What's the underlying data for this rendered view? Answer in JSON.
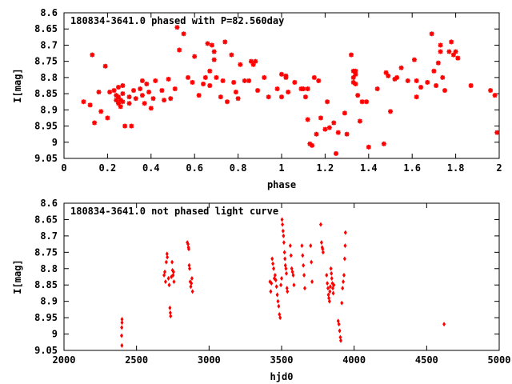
{
  "chart_data": [
    {
      "type": "scatter",
      "title": "180834-3641.0 phased with P=82.560day",
      "xlabel": "phase",
      "ylabel": "I[mag]",
      "xlim": [
        0,
        2
      ],
      "ylim": [
        9.05,
        8.6
      ],
      "y_inverted": true,
      "xticks": [
        0,
        0.2,
        0.4,
        0.6,
        0.8,
        1,
        1.2,
        1.4,
        1.6,
        1.8,
        2
      ],
      "xtick_labels": [
        "0",
        "0.2",
        "0.4",
        "0.6",
        "0.8",
        "1",
        "1.2",
        "1.4",
        "1.6",
        "1.8",
        "2"
      ],
      "yticks": [
        8.6,
        8.65,
        8.7,
        8.75,
        8.8,
        8.85,
        8.9,
        8.95,
        9,
        9.05
      ],
      "ytick_labels": [
        "8.6",
        "8.65",
        "8.7",
        "8.75",
        "8.8",
        "8.85",
        "8.9",
        "8.95",
        "9",
        "9.05"
      ],
      "marker": "star",
      "color": "#ff0000",
      "points": [
        [
          0.09,
          8.875
        ],
        [
          0.12,
          8.885
        ],
        [
          0.13,
          8.73
        ],
        [
          0.14,
          8.94
        ],
        [
          0.16,
          8.845
        ],
        [
          0.17,
          8.905
        ],
        [
          0.19,
          8.765
        ],
        [
          0.2,
          8.925
        ],
        [
          0.21,
          8.845
        ],
        [
          0.23,
          8.84
        ],
        [
          0.24,
          8.855
        ],
        [
          0.24,
          8.87
        ],
        [
          0.25,
          8.83
        ],
        [
          0.25,
          8.86
        ],
        [
          0.25,
          8.88
        ],
        [
          0.26,
          8.89
        ],
        [
          0.26,
          8.87
        ],
        [
          0.27,
          8.825
        ],
        [
          0.27,
          8.85
        ],
        [
          0.27,
          8.875
        ],
        [
          0.28,
          8.95
        ],
        [
          0.3,
          8.88
        ],
        [
          0.3,
          8.86
        ],
        [
          0.31,
          8.95
        ],
        [
          0.32,
          8.84
        ],
        [
          0.33,
          8.865
        ],
        [
          0.35,
          8.835
        ],
        [
          0.36,
          8.855
        ],
        [
          0.36,
          8.81
        ],
        [
          0.37,
          8.88
        ],
        [
          0.38,
          8.82
        ],
        [
          0.39,
          8.845
        ],
        [
          0.4,
          8.895
        ],
        [
          0.41,
          8.865
        ],
        [
          0.42,
          8.81
        ],
        [
          0.45,
          8.84
        ],
        [
          0.46,
          8.87
        ],
        [
          0.48,
          8.805
        ],
        [
          0.49,
          8.865
        ],
        [
          0.51,
          8.835
        ],
        [
          0.52,
          8.645
        ],
        [
          0.53,
          8.715
        ],
        [
          0.55,
          8.665
        ],
        [
          0.57,
          8.8
        ],
        [
          0.59,
          8.815
        ],
        [
          0.6,
          8.735
        ],
        [
          0.62,
          8.855
        ],
        [
          0.64,
          8.82
        ],
        [
          0.65,
          8.8
        ],
        [
          0.66,
          8.695
        ],
        [
          0.67,
          8.78
        ],
        [
          0.67,
          8.825
        ],
        [
          0.68,
          8.7
        ],
        [
          0.69,
          8.72
        ],
        [
          0.69,
          8.745
        ],
        [
          0.7,
          8.8
        ],
        [
          0.72,
          8.86
        ],
        [
          0.73,
          8.81
        ],
        [
          0.74,
          8.69
        ],
        [
          0.75,
          8.875
        ],
        [
          0.77,
          8.73
        ],
        [
          0.78,
          8.815
        ],
        [
          0.79,
          8.845
        ],
        [
          0.8,
          8.865
        ],
        [
          0.81,
          8.76
        ],
        [
          0.83,
          8.81
        ],
        [
          0.85,
          8.81
        ],
        [
          0.86,
          8.75
        ],
        [
          0.87,
          8.76
        ],
        [
          0.88,
          8.75
        ],
        [
          0.89,
          8.84
        ],
        [
          0.92,
          8.8
        ],
        [
          0.94,
          8.86
        ],
        [
          0.98,
          8.835
        ],
        [
          1.0,
          8.79
        ],
        [
          1.0,
          8.86
        ],
        [
          1.02,
          8.795
        ],
        [
          1.02,
          8.8
        ],
        [
          1.03,
          8.845
        ],
        [
          1.06,
          8.815
        ],
        [
          1.09,
          8.835
        ],
        [
          1.1,
          8.835
        ],
        [
          1.11,
          8.86
        ],
        [
          1.12,
          8.835
        ],
        [
          1.12,
          8.93
        ],
        [
          1.13,
          9.005
        ],
        [
          1.14,
          9.01
        ],
        [
          1.15,
          8.8
        ],
        [
          1.16,
          8.975
        ],
        [
          1.17,
          8.81
        ],
        [
          1.18,
          8.925
        ],
        [
          1.2,
          8.96
        ],
        [
          1.21,
          8.875
        ],
        [
          1.22,
          8.955
        ],
        [
          1.24,
          8.94
        ],
        [
          1.25,
          9.035
        ],
        [
          1.26,
          8.97
        ],
        [
          1.29,
          8.91
        ],
        [
          1.3,
          8.975
        ],
        [
          1.32,
          8.73
        ],
        [
          1.33,
          8.78
        ],
        [
          1.33,
          8.8
        ],
        [
          1.33,
          8.815
        ],
        [
          1.34,
          8.78
        ],
        [
          1.34,
          8.79
        ],
        [
          1.34,
          8.82
        ],
        [
          1.35,
          8.855
        ],
        [
          1.36,
          8.935
        ],
        [
          1.37,
          8.875
        ],
        [
          1.39,
          8.875
        ],
        [
          1.4,
          9.015
        ],
        [
          1.44,
          8.835
        ],
        [
          1.47,
          9.005
        ],
        [
          1.48,
          8.785
        ],
        [
          1.49,
          8.795
        ],
        [
          1.5,
          8.905
        ],
        [
          1.52,
          8.805
        ],
        [
          1.53,
          8.8
        ],
        [
          1.55,
          8.77
        ],
        [
          1.58,
          8.81
        ],
        [
          1.61,
          8.745
        ],
        [
          1.62,
          8.86
        ],
        [
          1.62,
          8.81
        ],
        [
          1.64,
          8.83
        ],
        [
          1.67,
          8.815
        ],
        [
          1.69,
          8.665
        ],
        [
          1.7,
          8.78
        ],
        [
          1.71,
          8.825
        ],
        [
          1.72,
          8.755
        ],
        [
          1.73,
          8.7
        ],
        [
          1.73,
          8.72
        ],
        [
          1.74,
          8.8
        ],
        [
          1.75,
          8.84
        ],
        [
          1.77,
          8.72
        ],
        [
          1.78,
          8.69
        ],
        [
          1.79,
          8.73
        ],
        [
          1.8,
          8.72
        ],
        [
          1.81,
          8.74
        ],
        [
          1.87,
          8.825
        ],
        [
          1.96,
          8.84
        ],
        [
          1.98,
          8.855
        ],
        [
          1.99,
          8.97
        ]
      ]
    },
    {
      "type": "scatter",
      "title": "180834-3641.0 not phased light curve",
      "xlabel": "hjd0",
      "ylabel": "I[mag]",
      "xlim": [
        2000,
        5000
      ],
      "ylim": [
        9.05,
        8.6
      ],
      "y_inverted": true,
      "xticks": [
        2000,
        2500,
        3000,
        3500,
        4000,
        4500,
        5000
      ],
      "xtick_labels": [
        "2000",
        "2500",
        "3000",
        "3500",
        "4000",
        "4500",
        "5000"
      ],
      "yticks": [
        8.6,
        8.65,
        8.7,
        8.75,
        8.8,
        8.85,
        8.9,
        8.95,
        9,
        9.05
      ],
      "ytick_labels": [
        "8.6",
        "8.65",
        "8.7",
        "8.75",
        "8.8",
        "8.85",
        "8.9",
        "8.95",
        "9",
        "9.05"
      ],
      "marker": "diamond",
      "color": "#ff0000",
      "points": [
        [
          2400,
          8.955
        ],
        [
          2400,
          8.965
        ],
        [
          2398,
          8.98
        ],
        [
          2397,
          9.005
        ],
        [
          2399,
          9.035
        ],
        [
          2690,
          8.82
        ],
        [
          2695,
          8.81
        ],
        [
          2700,
          8.84
        ],
        [
          2705,
          8.78
        ],
        [
          2710,
          8.755
        ],
        [
          2712,
          8.765
        ],
        [
          2720,
          8.83
        ],
        [
          2725,
          8.85
        ],
        [
          2730,
          8.92
        ],
        [
          2733,
          8.935
        ],
        [
          2735,
          8.945
        ],
        [
          2740,
          8.825
        ],
        [
          2745,
          8.78
        ],
        [
          2748,
          8.805
        ],
        [
          2752,
          8.82
        ],
        [
          2755,
          8.81
        ],
        [
          2758,
          8.84
        ],
        [
          2850,
          8.72
        ],
        [
          2855,
          8.725
        ],
        [
          2858,
          8.735
        ],
        [
          2860,
          8.74
        ],
        [
          2863,
          8.79
        ],
        [
          2866,
          8.8
        ],
        [
          2870,
          8.84
        ],
        [
          2874,
          8.855
        ],
        [
          2878,
          8.845
        ],
        [
          2882,
          8.83
        ],
        [
          2886,
          8.87
        ],
        [
          3420,
          8.84
        ],
        [
          3425,
          8.87
        ],
        [
          3430,
          8.845
        ],
        [
          3435,
          8.77
        ],
        [
          3440,
          8.785
        ],
        [
          3445,
          8.8
        ],
        [
          3450,
          8.83
        ],
        [
          3455,
          8.82
        ],
        [
          3460,
          8.835
        ],
        [
          3465,
          8.855
        ],
        [
          3470,
          8.88
        ],
        [
          3475,
          8.9
        ],
        [
          3480,
          8.915
        ],
        [
          3485,
          8.94
        ],
        [
          3490,
          8.95
        ],
        [
          3495,
          8.85
        ],
        [
          3500,
          8.83
        ],
        [
          3503,
          8.65
        ],
        [
          3506,
          8.665
        ],
        [
          3510,
          8.685
        ],
        [
          3513,
          8.7
        ],
        [
          3516,
          8.72
        ],
        [
          3520,
          8.75
        ],
        [
          3523,
          8.77
        ],
        [
          3526,
          8.79
        ],
        [
          3530,
          8.8
        ],
        [
          3533,
          8.815
        ],
        [
          3537,
          8.86
        ],
        [
          3540,
          8.87
        ],
        [
          3560,
          8.73
        ],
        [
          3565,
          8.76
        ],
        [
          3570,
          8.8
        ],
        [
          3575,
          8.81
        ],
        [
          3580,
          8.82
        ],
        [
          3585,
          8.85
        ],
        [
          3640,
          8.73
        ],
        [
          3645,
          8.76
        ],
        [
          3650,
          8.79
        ],
        [
          3655,
          8.82
        ],
        [
          3660,
          8.86
        ],
        [
          3700,
          8.73
        ],
        [
          3705,
          8.78
        ],
        [
          3710,
          8.84
        ],
        [
          3770,
          8.665
        ],
        [
          3775,
          8.72
        ],
        [
          3780,
          8.735
        ],
        [
          3783,
          8.74
        ],
        [
          3786,
          8.75
        ],
        [
          3810,
          8.82
        ],
        [
          3815,
          8.845
        ],
        [
          3820,
          8.86
        ],
        [
          3823,
          8.88
        ],
        [
          3826,
          8.89
        ],
        [
          3830,
          8.9
        ],
        [
          3833,
          8.87
        ],
        [
          3836,
          8.855
        ],
        [
          3840,
          8.8
        ],
        [
          3843,
          8.815
        ],
        [
          3846,
          8.83
        ],
        [
          3850,
          8.845
        ],
        [
          3853,
          8.86
        ],
        [
          3856,
          8.875
        ],
        [
          3860,
          8.85
        ],
        [
          3890,
          8.96
        ],
        [
          3895,
          8.97
        ],
        [
          3900,
          8.99
        ],
        [
          3905,
          9.01
        ],
        [
          3908,
          9.02
        ],
        [
          3915,
          8.905
        ],
        [
          3920,
          8.86
        ],
        [
          3925,
          8.84
        ],
        [
          3930,
          8.82
        ],
        [
          3935,
          8.77
        ],
        [
          3938,
          8.73
        ],
        [
          3940,
          8.69
        ],
        [
          4620,
          8.97
        ]
      ]
    }
  ]
}
